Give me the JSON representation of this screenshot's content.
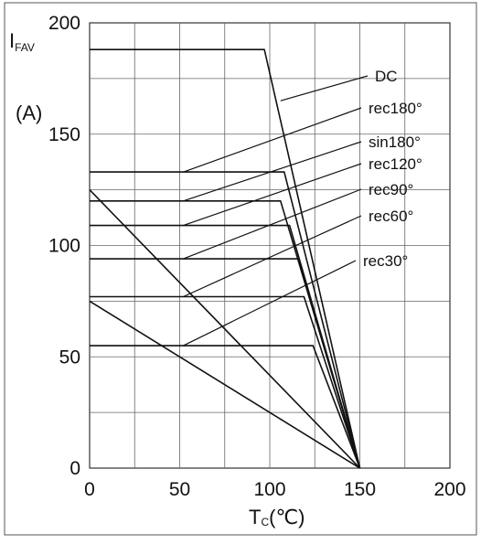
{
  "chart_data": {
    "type": "line",
    "title": "",
    "xlabel": {
      "main": "T",
      "sub": "C",
      "unit": "(℃)"
    },
    "ylabel": {
      "main": "I",
      "sub": "FAV",
      "unit": "(A)"
    },
    "xlim": [
      0,
      200
    ],
    "ylim": [
      0,
      200
    ],
    "xticks": [
      0,
      50,
      100,
      150,
      200
    ],
    "yticks": [
      0,
      50,
      100,
      150,
      200
    ],
    "x_tick_labels": [
      "0",
      "50",
      "100",
      "150",
      "200"
    ],
    "y_tick_labels": [
      "0",
      "50",
      "100",
      "150",
      "200"
    ],
    "grid": true,
    "series": [
      {
        "name": "DC",
        "points": [
          [
            0,
            188
          ],
          [
            97,
            188
          ],
          [
            150,
            0
          ]
        ],
        "label_anchor": [
          106,
          165
        ]
      },
      {
        "name": "rec180°",
        "points": [
          [
            0,
            133
          ],
          [
            108,
            133
          ],
          [
            150,
            0
          ]
        ],
        "label_anchor": [
          52,
          133
        ]
      },
      {
        "name": "sin180°",
        "points": [
          [
            0,
            125
          ],
          [
            0,
            125
          ],
          [
            150,
            0
          ]
        ],
        "label_anchor": [
          52,
          120
        ]
      },
      {
        "name": "rec120°",
        "points": [
          [
            0,
            120
          ],
          [
            106,
            120
          ],
          [
            150,
            0
          ]
        ],
        "label_anchor": [
          52,
          109
        ]
      },
      {
        "name": "rec90°",
        "points": [
          [
            0,
            109
          ],
          [
            111,
            109
          ],
          [
            150,
            0
          ]
        ],
        "label_anchor": [
          52,
          94
        ]
      },
      {
        "name": "rec60°",
        "points": [
          [
            0,
            94
          ],
          [
            116,
            94
          ],
          [
            150,
            0
          ]
        ],
        "label_anchor": [
          52,
          77
        ]
      },
      {
        "name": "rec30°",
        "points": [
          [
            0,
            77
          ],
          [
            119,
            77
          ],
          [
            150,
            0
          ]
        ],
        "label_anchor": [
          52,
          55
        ]
      },
      {
        "name": "",
        "points": [
          [
            0,
            75
          ],
          [
            0,
            75
          ],
          [
            150,
            0
          ]
        ],
        "label_anchor": null
      },
      {
        "name": "",
        "points": [
          [
            0,
            55
          ],
          [
            124,
            55
          ],
          [
            150,
            0
          ]
        ],
        "label_anchor": null
      }
    ],
    "legend": "inline-labels"
  }
}
